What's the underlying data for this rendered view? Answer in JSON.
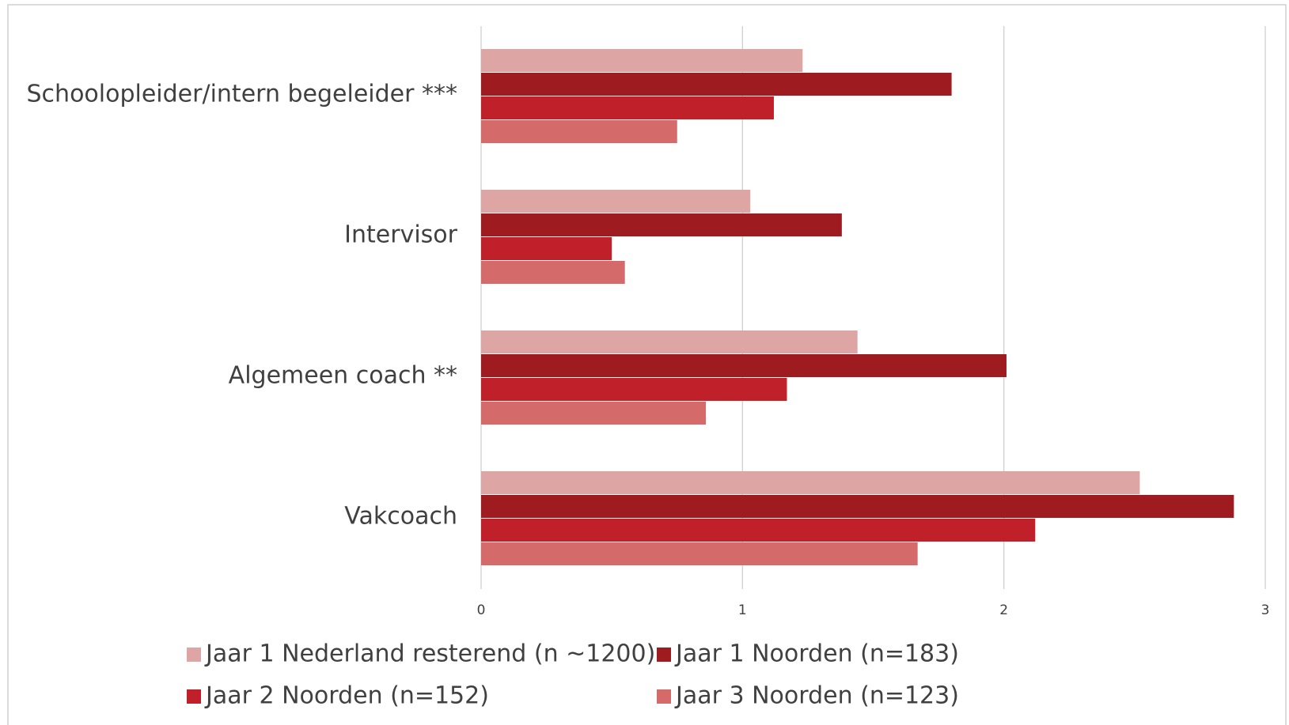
{
  "chart_data": {
    "type": "bar",
    "orientation": "horizontal",
    "categories": [
      "Schoolopleider/intern begeleider ***",
      "Intervisor",
      "Algemeen coach **",
      "Vakcoach"
    ],
    "series": [
      {
        "name": "Jaar 1 Nederland resterend (n ~1200)",
        "color": "#dea5a5",
        "values": [
          1.23,
          1.03,
          1.44,
          2.52
        ]
      },
      {
        "name": "Jaar 1 Noorden (n=183)",
        "color": "#9e1b20",
        "values": [
          1.8,
          1.38,
          2.01,
          2.88
        ]
      },
      {
        "name": "Jaar 2 Noorden (n=152)",
        "color": "#c0202a",
        "values": [
          1.12,
          0.5,
          1.17,
          2.12
        ]
      },
      {
        "name": "Jaar 3 Noorden (n=123)",
        "color": "#d46a6a",
        "values": [
          0.75,
          0.55,
          0.86,
          1.67
        ]
      }
    ],
    "xlim": [
      0,
      3
    ],
    "xticks": [
      0,
      1,
      2,
      3
    ],
    "grid": true,
    "legend": "bottom"
  }
}
